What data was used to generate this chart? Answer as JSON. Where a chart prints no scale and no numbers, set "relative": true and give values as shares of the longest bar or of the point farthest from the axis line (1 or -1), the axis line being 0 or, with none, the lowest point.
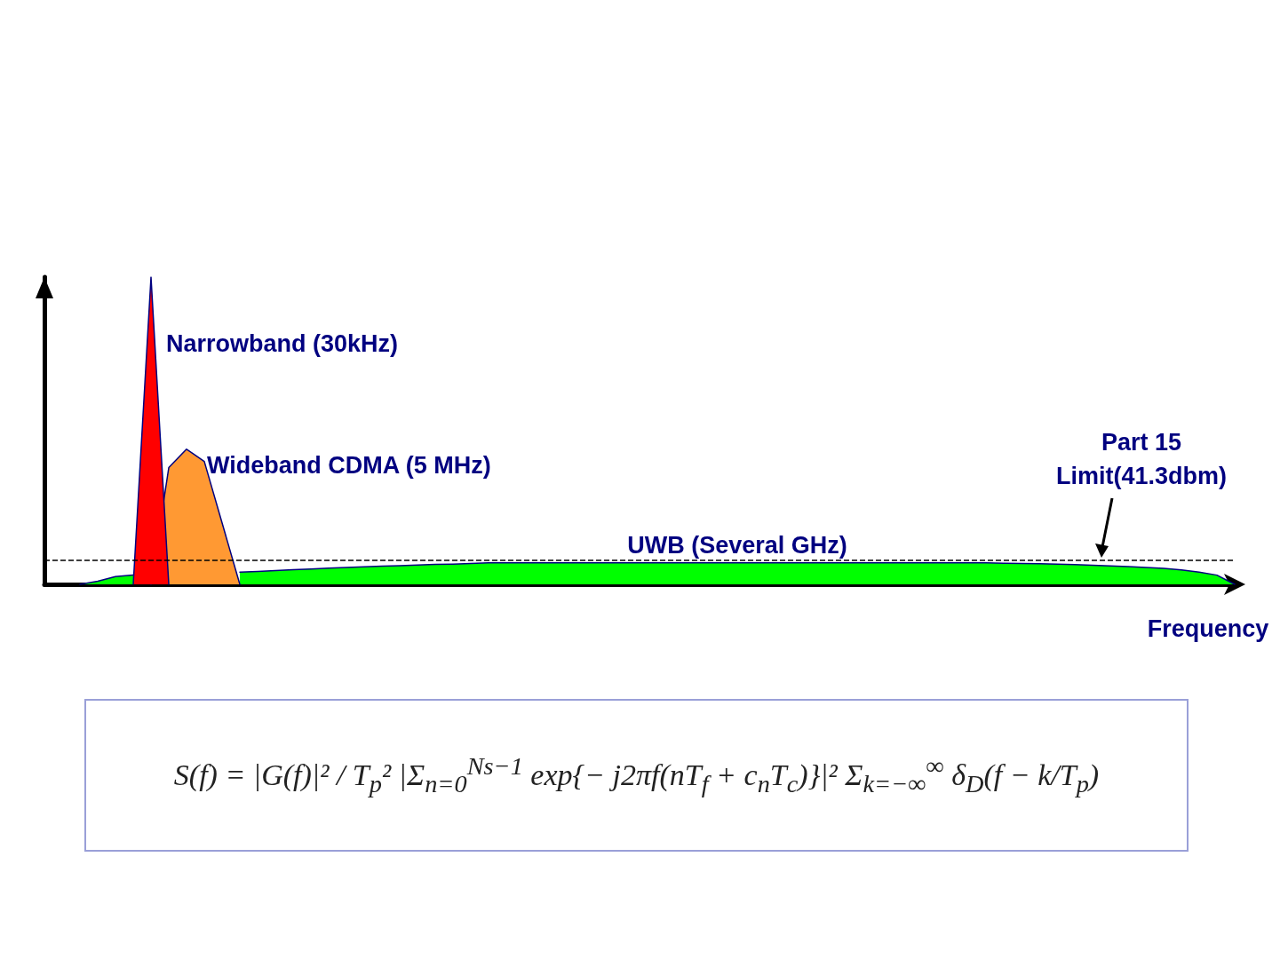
{
  "chart_data": {
    "type": "area",
    "relative": true,
    "xlabel": "Frequency",
    "categories": [
      null,
      null,
      null,
      null,
      null,
      null,
      null,
      null,
      null,
      null,
      null,
      null,
      null,
      null,
      null,
      null,
      null,
      null,
      null,
      null,
      null,
      null,
      null,
      null,
      null,
      null,
      null,
      null,
      null,
      null,
      null,
      null,
      null,
      null,
      null,
      null,
      null,
      null,
      null,
      null,
      null,
      null,
      null,
      null,
      null,
      null,
      null,
      null,
      null,
      null,
      null,
      null,
      null,
      null,
      null,
      null,
      null,
      null,
      null,
      null,
      null,
      null,
      null,
      null,
      null,
      null,
      null,
      null
    ],
    "series": [
      {
        "name": "UWB (Several GHz)",
        "color": "#00ff00",
        "values": [
          null,
          null,
          0,
          0.01,
          0.025,
          0.03,
          null,
          null,
          null,
          null,
          null,
          0.04,
          0.042,
          0.045,
          0.048,
          0.05,
          0.053,
          0.055,
          0.057,
          0.059,
          0.061,
          0.063,
          0.065,
          0.066,
          0.068,
          0.07,
          0.07,
          0.07,
          0.07,
          0.07,
          0.07,
          0.07,
          0.07,
          0.07,
          0.07,
          0.07,
          0.07,
          0.07,
          0.07,
          0.07,
          0.07,
          0.07,
          0.07,
          0.07,
          0.07,
          0.07,
          0.07,
          0.07,
          0.07,
          0.07,
          0.07,
          0.07,
          0.07,
          0.07,
          0.069,
          0.068,
          0.067,
          0.066,
          0.064,
          0.062,
          0.06,
          0.058,
          0.055,
          0.052,
          0.047,
          0.04,
          0.03,
          0
        ]
      },
      {
        "name": "Wideband CDMA (5 MHz)",
        "color": "#ff9933",
        "values": [
          null,
          null,
          null,
          null,
          null,
          null,
          0,
          0.38,
          0.44,
          0.4,
          0.2,
          0,
          null,
          null,
          null,
          null,
          null,
          null,
          null,
          null,
          null,
          null,
          null,
          null,
          null,
          null,
          null,
          null,
          null,
          null,
          null,
          null,
          null,
          null,
          null,
          null,
          null,
          null,
          null,
          null,
          null,
          null,
          null,
          null,
          null,
          null,
          null,
          null,
          null,
          null,
          null,
          null,
          null,
          null,
          null,
          null,
          null,
          null,
          null,
          null,
          null,
          null,
          null,
          null,
          null,
          null,
          null,
          null
        ]
      },
      {
        "name": "Narrowband (30kHz)",
        "color": "#ff0000",
        "values": [
          null,
          null,
          null,
          null,
          null,
          0,
          1,
          0,
          null,
          null,
          null,
          null,
          null,
          null,
          null,
          null,
          null,
          null,
          null,
          null,
          null,
          null,
          null,
          null,
          null,
          null,
          null,
          null,
          null,
          null,
          null,
          null,
          null,
          null,
          null,
          null,
          null,
          null,
          null,
          null,
          null,
          null,
          null,
          null,
          null,
          null,
          null,
          null,
          null,
          null,
          null,
          null,
          null,
          null,
          null,
          null,
          null,
          null,
          null,
          null,
          null,
          null,
          null,
          null,
          null,
          null,
          null,
          null
        ]
      }
    ],
    "ref_lines": [
      {
        "axis": "y",
        "value": 0.078,
        "label": "Part 15\nLimit(41.3dbm)",
        "color": "#000000",
        "line_style": "dashed"
      }
    ],
    "annotations": [
      "S(f) = |G(f)|² / T$_{p}$² |Σ$_{n=0}$$^{Ns−1}$ exp{− j2πf(nT$_{f}$ + c$_{n}$T$_{c}$)}|² Σ$_{k=−∞}$$^{∞}$ δ$_{D}$(f − k/T$_{p}$)"
    ],
    "legend": false,
    "grid": false,
    "marker": "none",
    "line_style": "solid"
  }
}
